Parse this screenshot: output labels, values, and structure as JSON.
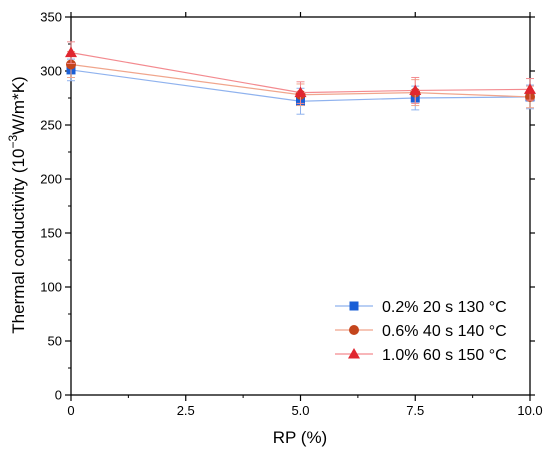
{
  "chart_data": {
    "type": "line",
    "title": "",
    "xlabel": "RP (%)",
    "ylabel_prefix": "Thermal conductivity (10",
    "ylabel_exponent": "−3",
    "ylabel_suffix": "W/m*K)",
    "xlim": [
      0,
      10
    ],
    "ylim": [
      0,
      350
    ],
    "xticks": [
      0,
      2.5,
      5,
      7.5,
      10
    ],
    "xtick_labels": [
      "0",
      "2.5",
      "5.0",
      "7.5",
      "10.0"
    ],
    "yticks": [
      0,
      50,
      100,
      150,
      200,
      250,
      300,
      350
    ],
    "ytick_labels": [
      "0",
      "50",
      "100",
      "150",
      "200",
      "250",
      "300",
      "350"
    ],
    "grid": false,
    "legend_position": "bottom-right",
    "series": [
      {
        "name": "0.2% 20 s 130 °C",
        "marker": "square",
        "color": "#1a5fd6",
        "line_color": "#8fb2ee",
        "x": [
          0,
          5,
          7.5,
          10
        ],
        "y": [
          301,
          272,
          275,
          276
        ],
        "err": [
          10,
          12,
          11,
          11
        ]
      },
      {
        "name": "0.6% 40 s 140 °C",
        "marker": "circle",
        "color": "#c4451c",
        "line_color": "#f0a58c",
        "x": [
          0,
          5,
          7.5,
          10
        ],
        "y": [
          306,
          278,
          280,
          276
        ],
        "err": [
          12,
          10,
          12,
          10
        ]
      },
      {
        "name": "1.0% 60 s 150 °C",
        "marker": "triangle",
        "color": "#e0262f",
        "line_color": "#f38a8f",
        "x": [
          0,
          5,
          7.5,
          10
        ],
        "y": [
          317,
          280,
          282,
          283
        ],
        "err": [
          10,
          10,
          12,
          10
        ]
      }
    ]
  }
}
